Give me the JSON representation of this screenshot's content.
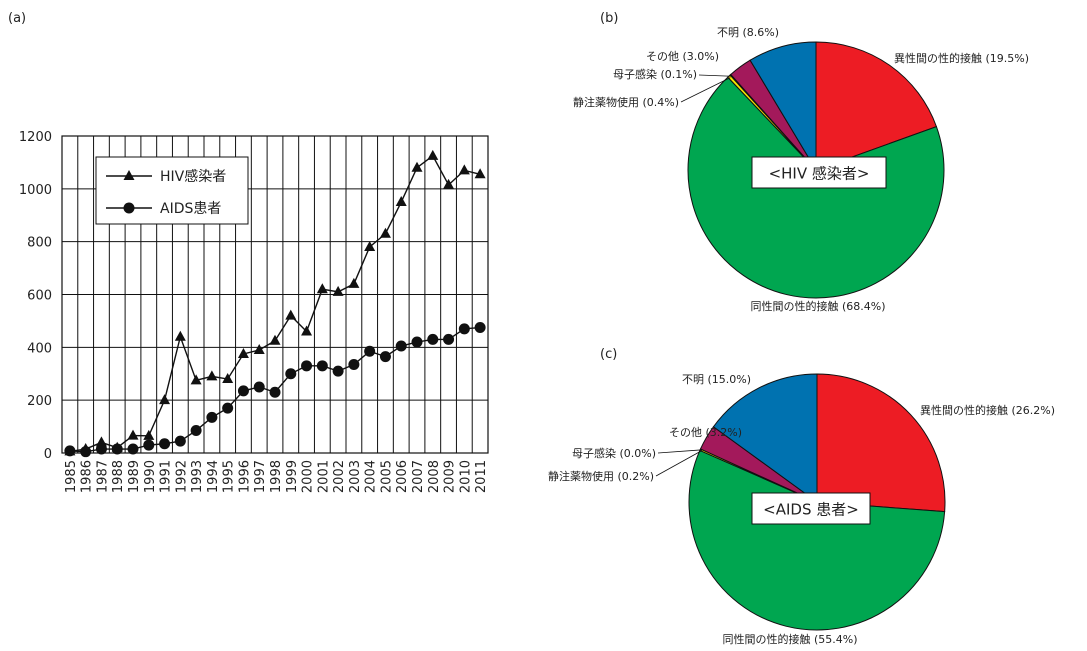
{
  "panels": {
    "a": "(a)",
    "b": "(b)",
    "c": "(c)"
  },
  "chart_data": [
    {
      "type": "line",
      "x": [
        1985,
        1986,
        1987,
        1988,
        1989,
        1990,
        1991,
        1992,
        1993,
        1994,
        1995,
        1996,
        1997,
        1998,
        1999,
        2000,
        2001,
        2002,
        2003,
        2004,
        2005,
        2006,
        2007,
        2008,
        2009,
        2010,
        2011
      ],
      "series": [
        {
          "name": "HIV感染者",
          "marker": "triangle",
          "values": [
            6,
            15,
            40,
            20,
            66,
            65,
            200,
            440,
            275,
            290,
            280,
            375,
            390,
            425,
            520,
            460,
            620,
            610,
            640,
            780,
            830,
            950,
            1080,
            1125,
            1015,
            1070,
            1055
          ]
        },
        {
          "name": "AIDS患者",
          "marker": "circle",
          "values": [
            8,
            5,
            15,
            15,
            15,
            30,
            35,
            45,
            85,
            135,
            170,
            235,
            250,
            230,
            300,
            330,
            330,
            310,
            335,
            385,
            365,
            405,
            420,
            430,
            430,
            470,
            475
          ]
        }
      ],
      "ylim": [
        0,
        1200
      ],
      "yticks": [
        0,
        200,
        400,
        600,
        800,
        1000,
        1200
      ],
      "grid": true,
      "legend": "top-left"
    },
    {
      "type": "pie",
      "center_label": "<HIV 感染者>",
      "slices": [
        {
          "label": "異性間の性的接触",
          "value": 19.5,
          "display": "異性間の性的接触 (19.5%)",
          "color": "#ed1c24"
        },
        {
          "label": "同性間の性的接触",
          "value": 68.4,
          "display": "同性間の性的接触 (68.4%)",
          "color": "#00a650"
        },
        {
          "label": "静注薬物使用",
          "value": 0.4,
          "display": "静注薬物使用 (0.4%)",
          "color": "#f7e600"
        },
        {
          "label": "母子感染",
          "value": 0.1,
          "display": "母子感染 (0.1%)",
          "color": "#7a3b1e"
        },
        {
          "label": "その他",
          "value": 3.0,
          "display": "その他 (3.0%)",
          "color": "#a3195b"
        },
        {
          "label": "不明",
          "value": 8.6,
          "display": "不明 (8.6%)",
          "color": "#0072b0"
        }
      ]
    },
    {
      "type": "pie",
      "center_label": "<AIDS 患者>",
      "slices": [
        {
          "label": "異性間の性的接触",
          "value": 26.2,
          "display": "異性間の性的接触 (26.2%)",
          "color": "#ed1c24"
        },
        {
          "label": "同性間の性的接触",
          "value": 55.4,
          "display": "同性間の性的接触 (55.4%)",
          "color": "#00a650"
        },
        {
          "label": "静注薬物使用",
          "value": 0.2,
          "display": "静注薬物使用 (0.2%)",
          "color": "#f7e600"
        },
        {
          "label": "母子感染",
          "value": 0.0,
          "display": "母子感染 (0.0%)",
          "color": "#7a3b1e"
        },
        {
          "label": "その他",
          "value": 3.2,
          "display": "その他 (3.2%)",
          "color": "#a3195b"
        },
        {
          "label": "不明",
          "value": 15.0,
          "display": "不明 (15.0%)",
          "color": "#0072b0"
        }
      ]
    }
  ]
}
